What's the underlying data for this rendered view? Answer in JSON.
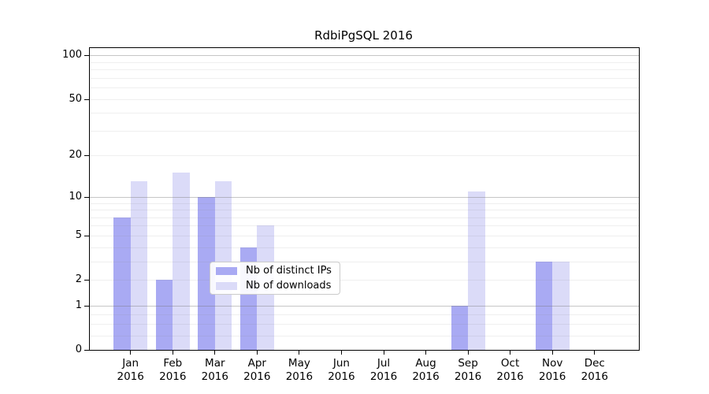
{
  "title": "RdbiPgSQL 2016",
  "chart_data": {
    "type": "bar",
    "title": "RdbiPgSQL 2016",
    "categories": [
      "Jan 2016",
      "Feb 2016",
      "Mar 2016",
      "Apr 2016",
      "May 2016",
      "Jun 2016",
      "Jul 2016",
      "Aug 2016",
      "Sep 2016",
      "Oct 2016",
      "Nov 2016",
      "Dec 2016"
    ],
    "series": [
      {
        "name": "Nb of distinct IPs",
        "color": "#a9aaf3",
        "values": [
          7,
          2,
          10,
          4,
          0,
          0,
          0,
          0,
          1,
          0,
          3,
          0
        ]
      },
      {
        "name": "Nb of downloads",
        "color": "#dbdbf8",
        "values": [
          13,
          15,
          13,
          6,
          0,
          0,
          0,
          0,
          11,
          0,
          3,
          0
        ]
      }
    ],
    "xlabel": "",
    "ylabel": "",
    "y_axis": {
      "scale": "log(1+x)",
      "tick_labels": [
        0,
        1,
        2,
        5,
        10,
        20,
        50,
        100
      ],
      "range": [
        0,
        113
      ]
    },
    "grid": {
      "on": true,
      "major_lines_at": [
        1,
        10,
        100
      ],
      "minor_lines_at": [
        0.25,
        0.5,
        0.75,
        2,
        3,
        4,
        5,
        6,
        7,
        8,
        9,
        20,
        30,
        40,
        50,
        60,
        70,
        80,
        90
      ]
    },
    "legend": {
      "position": "lower center inside plot",
      "entries": [
        "Nb of distinct IPs",
        "Nb of downloads"
      ]
    }
  }
}
